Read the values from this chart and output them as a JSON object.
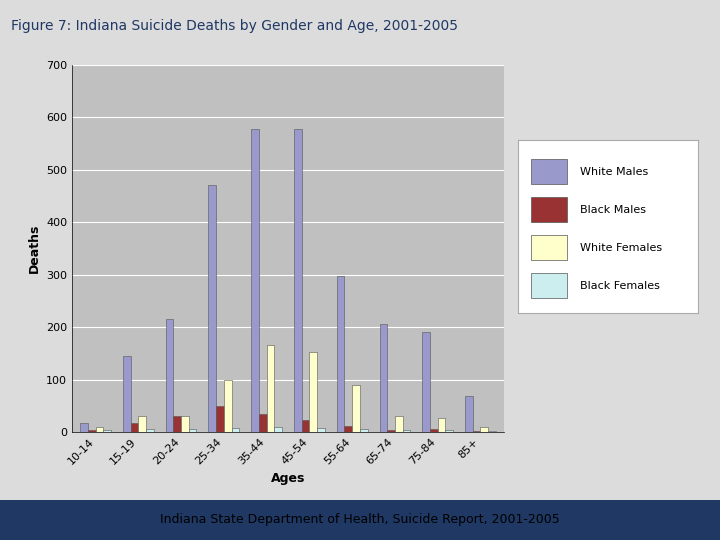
{
  "title": "Figure 7: Indiana Suicide Deaths by Gender and Age, 2001-2005",
  "subtitle": "Indiana State Department of Health, Suicide Report, 2001-2005",
  "age_groups": [
    "10-14",
    "15-19",
    "20-24",
    "25-34",
    "35-44",
    "45-54",
    "55-64",
    "65-74",
    "75-84",
    "85+"
  ],
  "series": {
    "White Males": [
      18,
      145,
      215,
      470,
      578,
      578,
      297,
      205,
      190,
      68
    ],
    "Black Males": [
      3,
      18,
      30,
      50,
      35,
      22,
      12,
      3,
      5,
      2
    ],
    "White Females": [
      10,
      30,
      30,
      100,
      165,
      153,
      90,
      30,
      27,
      10
    ],
    "Black Females": [
      3,
      5,
      5,
      8,
      10,
      8,
      5,
      3,
      3,
      2
    ]
  },
  "colors": {
    "White Males": "#9999CC",
    "Black Males": "#993333",
    "White Females": "#FFFFCC",
    "Black Females": "#CCEEEE"
  },
  "ylim": [
    0,
    700
  ],
  "yticks": [
    0,
    100,
    200,
    300,
    400,
    500,
    600,
    700
  ],
  "xlabel": "Ages",
  "ylabel": "Deaths",
  "plot_bg_color": "#C0C0C0",
  "fig_bg_color": "#DCDCDC",
  "title_color": "#1F3864",
  "subtitle_color": "#333333",
  "title_fontsize": 10,
  "subtitle_fontsize": 9,
  "axis_label_fontsize": 9,
  "tick_fontsize": 8,
  "legend_fontsize": 8
}
